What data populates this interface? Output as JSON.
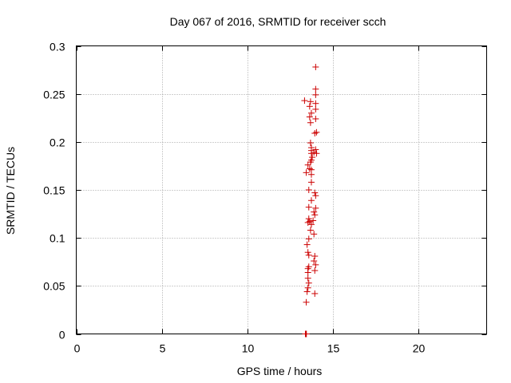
{
  "chart_data": {
    "type": "scatter",
    "title": "Day 067 of 2016, SRMTID for receiver scch",
    "xlabel": "GPS time / hours",
    "ylabel": "SRMTID / TECUs",
    "xlim": [
      0,
      24
    ],
    "ylim": [
      0,
      0.3
    ],
    "x_ticks": [
      0,
      5,
      10,
      15,
      20
    ],
    "x_tick_labels": [
      "0",
      "5",
      "10",
      "15",
      "20"
    ],
    "y_ticks": [
      0,
      0.05,
      0.1,
      0.15,
      0.2,
      0.25,
      0.3
    ],
    "y_tick_labels": [
      "0",
      "0.05",
      "0.1",
      "0.15",
      "0.2",
      "0.25",
      "0.3"
    ],
    "grid": true,
    "legend": false,
    "marker": "plus",
    "colors": {
      "series": "#cc0000",
      "grid": "#a0a0a0",
      "axis": "#000000"
    },
    "series": [
      {
        "points": [
          [
            14.0,
            0.278
          ],
          [
            14.0,
            0.255
          ],
          [
            14.0,
            0.249
          ],
          [
            13.35,
            0.243
          ],
          [
            13.7,
            0.242
          ],
          [
            14.0,
            0.24
          ],
          [
            13.65,
            0.237
          ],
          [
            14.0,
            0.234
          ],
          [
            13.75,
            0.23
          ],
          [
            13.65,
            0.226
          ],
          [
            14.0,
            0.224
          ],
          [
            13.7,
            0.22
          ],
          [
            14.05,
            0.21
          ],
          [
            13.95,
            0.209
          ],
          [
            13.7,
            0.199
          ],
          [
            13.75,
            0.194
          ],
          [
            13.75,
            0.191
          ],
          [
            14.0,
            0.192
          ],
          [
            13.75,
            0.188
          ],
          [
            13.9,
            0.189
          ],
          [
            14.05,
            0.188
          ],
          [
            13.8,
            0.184
          ],
          [
            13.75,
            0.181
          ],
          [
            13.7,
            0.179
          ],
          [
            13.55,
            0.176
          ],
          [
            13.65,
            0.172
          ],
          [
            13.75,
            0.171
          ],
          [
            13.45,
            0.168
          ],
          [
            13.75,
            0.166
          ],
          [
            13.75,
            0.158
          ],
          [
            13.6,
            0.15
          ],
          [
            13.95,
            0.147
          ],
          [
            14.0,
            0.144
          ],
          [
            13.75,
            0.139
          ],
          [
            14.0,
            0.131
          ],
          [
            13.6,
            0.132
          ],
          [
            13.9,
            0.127
          ],
          [
            13.95,
            0.124
          ],
          [
            13.6,
            0.12
          ],
          [
            13.65,
            0.117
          ],
          [
            13.85,
            0.118
          ],
          [
            13.55,
            0.116
          ],
          [
            13.75,
            0.114
          ],
          [
            13.7,
            0.108
          ],
          [
            13.9,
            0.104
          ],
          [
            13.6,
            0.099
          ],
          [
            13.5,
            0.093
          ],
          [
            13.55,
            0.085
          ],
          [
            13.6,
            0.082
          ],
          [
            13.95,
            0.081
          ],
          [
            13.9,
            0.076
          ],
          [
            14.0,
            0.072
          ],
          [
            13.6,
            0.07
          ],
          [
            13.55,
            0.068
          ],
          [
            13.95,
            0.066
          ],
          [
            13.55,
            0.064
          ],
          [
            13.55,
            0.058
          ],
          [
            13.6,
            0.053
          ],
          [
            13.55,
            0.048
          ],
          [
            13.5,
            0.044
          ],
          [
            13.95,
            0.042
          ],
          [
            13.45,
            0.033
          ],
          [
            13.4,
            0.0
          ],
          [
            13.42,
            0.0
          ],
          [
            13.44,
            0.0
          ],
          [
            13.46,
            0.0
          ]
        ]
      }
    ]
  }
}
